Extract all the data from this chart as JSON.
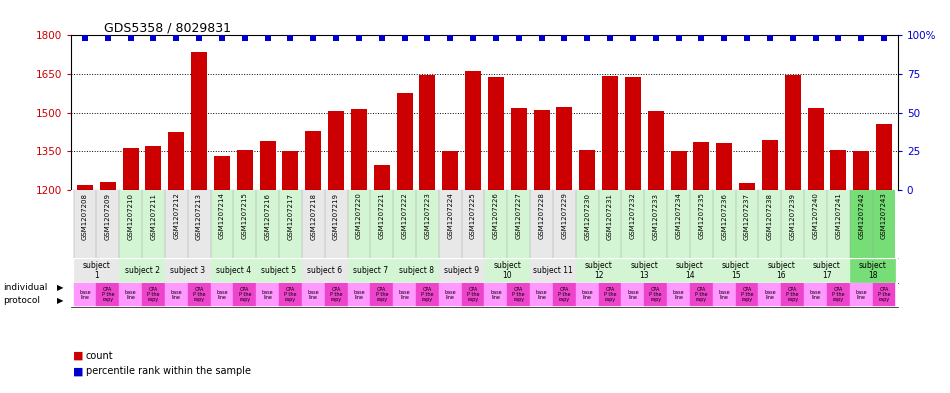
{
  "title": "GDS5358 / 8029831",
  "bar_values": [
    1217,
    1232,
    1364,
    1372,
    1425,
    1735,
    1330,
    1356,
    1388,
    1352,
    1430,
    1505,
    1515,
    1295,
    1577,
    1648,
    1352,
    1660,
    1640,
    1518,
    1509,
    1520,
    1355,
    1642,
    1638,
    1508,
    1350,
    1385,
    1383,
    1228,
    1392,
    1648,
    1518,
    1356,
    1352,
    1454
  ],
  "sample_ids": [
    "GSM1207208",
    "GSM1207209",
    "GSM1207210",
    "GSM1207211",
    "GSM1207212",
    "GSM1207213",
    "GSM1207214",
    "GSM1207215",
    "GSM1207216",
    "GSM1207217",
    "GSM1207218",
    "GSM1207219",
    "GSM1207220",
    "GSM1207221",
    "GSM1207222",
    "GSM1207223",
    "GSM1207224",
    "GSM1207225",
    "GSM1207226",
    "GSM1207227",
    "GSM1207228",
    "GSM1207229",
    "GSM1207230",
    "GSM1207231",
    "GSM1207232",
    "GSM1207233",
    "GSM1207234",
    "GSM1207235",
    "GSM1207236",
    "GSM1207237",
    "GSM1207238",
    "GSM1207239",
    "GSM1207240",
    "GSM1207241",
    "GSM1207242",
    "GSM1207243"
  ],
  "subjects": [
    {
      "label": "subject\n1",
      "start": 0,
      "end": 2,
      "color": "#e8e8e8"
    },
    {
      "label": "subject 2",
      "start": 2,
      "end": 4,
      "color": "#d4f5d4"
    },
    {
      "label": "subject 3",
      "start": 4,
      "end": 6,
      "color": "#e8e8e8"
    },
    {
      "label": "subject 4",
      "start": 6,
      "end": 8,
      "color": "#d4f5d4"
    },
    {
      "label": "subject 5",
      "start": 8,
      "end": 10,
      "color": "#d4f5d4"
    },
    {
      "label": "subject 6",
      "start": 10,
      "end": 12,
      "color": "#e8e8e8"
    },
    {
      "label": "subject 7",
      "start": 12,
      "end": 14,
      "color": "#d4f5d4"
    },
    {
      "label": "subject 8",
      "start": 14,
      "end": 16,
      "color": "#d4f5d4"
    },
    {
      "label": "subject 9",
      "start": 16,
      "end": 18,
      "color": "#e8e8e8"
    },
    {
      "label": "subject\n10",
      "start": 18,
      "end": 20,
      "color": "#d4f5d4"
    },
    {
      "label": "subject 11",
      "start": 20,
      "end": 22,
      "color": "#e8e8e8"
    },
    {
      "label": "subject\n12",
      "start": 22,
      "end": 24,
      "color": "#d4f5d4"
    },
    {
      "label": "subject\n13",
      "start": 24,
      "end": 26,
      "color": "#d4f5d4"
    },
    {
      "label": "subject\n14",
      "start": 26,
      "end": 28,
      "color": "#d4f5d4"
    },
    {
      "label": "subject\n15",
      "start": 28,
      "end": 30,
      "color": "#d4f5d4"
    },
    {
      "label": "subject\n16",
      "start": 30,
      "end": 32,
      "color": "#d4f5d4"
    },
    {
      "label": "subject\n17",
      "start": 32,
      "end": 34,
      "color": "#d4f5d4"
    },
    {
      "label": "subject\n18",
      "start": 34,
      "end": 36,
      "color": "#77dd77"
    }
  ],
  "ylim_left": [
    1200,
    1800
  ],
  "yticks_left": [
    1200,
    1350,
    1500,
    1650,
    1800
  ],
  "ylim_right": [
    0,
    100
  ],
  "yticks_right": [
    0,
    25,
    50,
    75,
    100
  ],
  "bar_color": "#cc0000",
  "dot_color": "#0000cc",
  "protocol_color_even": "#ff88ff",
  "protocol_color_odd": "#ff44cc",
  "bar_width": 0.7
}
